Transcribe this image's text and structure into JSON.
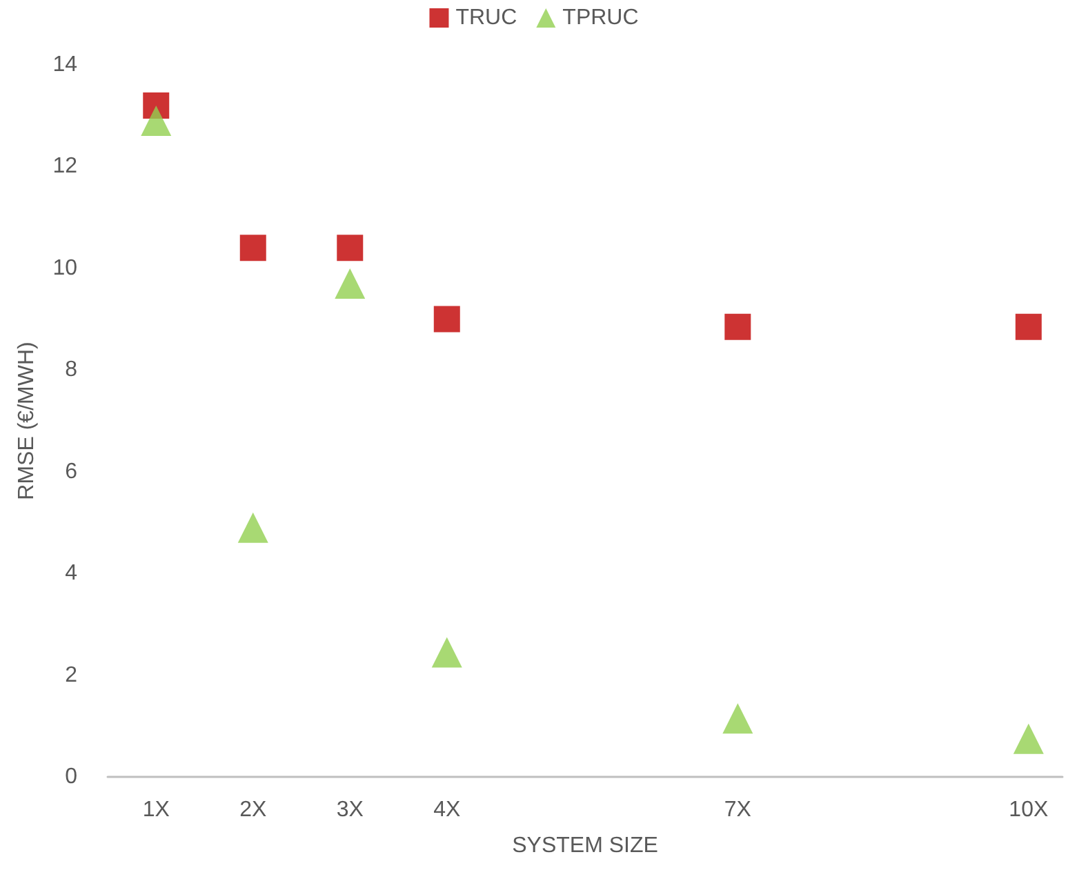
{
  "chart_data": {
    "type": "scatter",
    "xlabel": "SYSTEM SIZE",
    "ylabel": "RMSE (€/MWH)",
    "x": [
      1,
      2,
      3,
      4,
      7,
      10
    ],
    "series": [
      {
        "name": "TRUC",
        "color": "#c00000",
        "marker": "square",
        "values": [
          13.2,
          10.4,
          10.4,
          9.0,
          8.85,
          8.85
        ]
      },
      {
        "name": "TPRUC",
        "color": "#92d050",
        "marker": "triangle",
        "values": [
          12.9,
          4.9,
          9.7,
          2.45,
          1.15,
          0.75
        ]
      }
    ],
    "xlim": [
      0.5,
      10.35
    ],
    "xticks": [
      {
        "value": 1,
        "label": "1X"
      },
      {
        "value": 2,
        "label": "2X"
      },
      {
        "value": 3,
        "label": "3X"
      },
      {
        "value": 4,
        "label": "4X"
      },
      {
        "value": 7,
        "label": "7X"
      },
      {
        "value": 10,
        "label": "10X"
      }
    ],
    "ylim": [
      0,
      14
    ],
    "yticks": [
      0,
      2,
      4,
      6,
      8,
      10,
      12,
      14
    ],
    "grid": false,
    "legend": "top"
  }
}
